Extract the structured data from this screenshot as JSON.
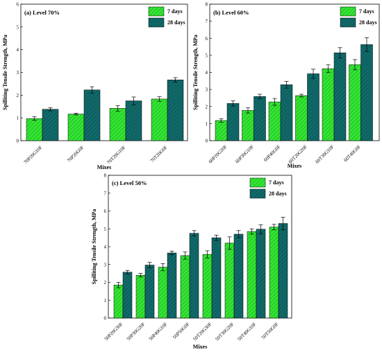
{
  "colors": {
    "days7": "#33e633",
    "days28": "#116a6a"
  },
  "chart_data": [
    {
      "type": "bar",
      "title": "(a) Level 70%",
      "xlabel": "Mixes",
      "ylabel": "Spilliting Tensile Strength, MPa",
      "ylim": [
        0,
        6
      ],
      "yticks": [
        "0",
        "1",
        "2",
        "3",
        "4",
        "5",
        "6"
      ],
      "legend_position": "top-right",
      "categories": [
        "70P20G10F",
        "70P20G0F",
        "70T20G10F",
        "70T20G0F"
      ],
      "series": [
        {
          "name": "7 days",
          "values": [
            0.97,
            1.17,
            1.42,
            1.83
          ],
          "errors": [
            0.08,
            0.04,
            0.12,
            0.1
          ]
        },
        {
          "name": "28 days",
          "values": [
            1.38,
            2.23,
            1.75,
            2.67
          ],
          "errors": [
            0.07,
            0.14,
            0.17,
            0.1
          ]
        }
      ]
    },
    {
      "type": "bar",
      "title": "(b) Level 60%",
      "xlabel": "Mixes",
      "ylabel": "Spilliting Tensile Strength, MPa",
      "ylim": [
        0,
        8
      ],
      "yticks": [
        "0",
        "1",
        "2",
        "3",
        "4",
        "5",
        "6",
        "7",
        "8"
      ],
      "legend_position": "top-right",
      "categories": [
        "60P20G20F",
        "60P30G10F",
        "60P40G0F",
        "60T20G20F",
        "60T30G10F",
        "60T40G0F"
      ],
      "series": [
        {
          "name": "7 days",
          "values": [
            1.18,
            1.77,
            2.27,
            2.64,
            4.22,
            4.45
          ],
          "errors": [
            0.1,
            0.15,
            0.2,
            0.08,
            0.22,
            0.3
          ]
        },
        {
          "name": "28 days",
          "values": [
            2.18,
            2.59,
            3.28,
            3.92,
            5.15,
            5.63
          ],
          "errors": [
            0.15,
            0.13,
            0.2,
            0.27,
            0.3,
            0.4
          ]
        }
      ]
    },
    {
      "type": "bar",
      "title": "(c) Level 50%",
      "xlabel": "Mixes",
      "ylabel": "Spilliting Tensile Strength, MPa",
      "ylim": [
        0,
        8
      ],
      "yticks": [
        "0",
        "1",
        "2",
        "3",
        "4",
        "5",
        "6",
        "7",
        "8"
      ],
      "legend_position": "top-right",
      "categories": [
        "50P20G30F",
        "50P30G20F",
        "50P40G10F",
        "50P50G0F",
        "50T20G30F",
        "50T30G20F",
        "50T40G10F",
        "50T50G0F"
      ],
      "series": [
        {
          "name": "7 days",
          "values": [
            1.85,
            2.4,
            2.85,
            3.5,
            3.57,
            4.2,
            4.85,
            5.1
          ],
          "errors": [
            0.15,
            0.1,
            0.2,
            0.2,
            0.2,
            0.35,
            0.15,
            0.15
          ]
        },
        {
          "name": "28 days",
          "values": [
            2.57,
            2.97,
            3.65,
            4.75,
            4.5,
            4.7,
            4.98,
            5.3
          ],
          "errors": [
            0.1,
            0.15,
            0.1,
            0.15,
            0.15,
            0.2,
            0.25,
            0.35
          ]
        }
      ]
    }
  ]
}
